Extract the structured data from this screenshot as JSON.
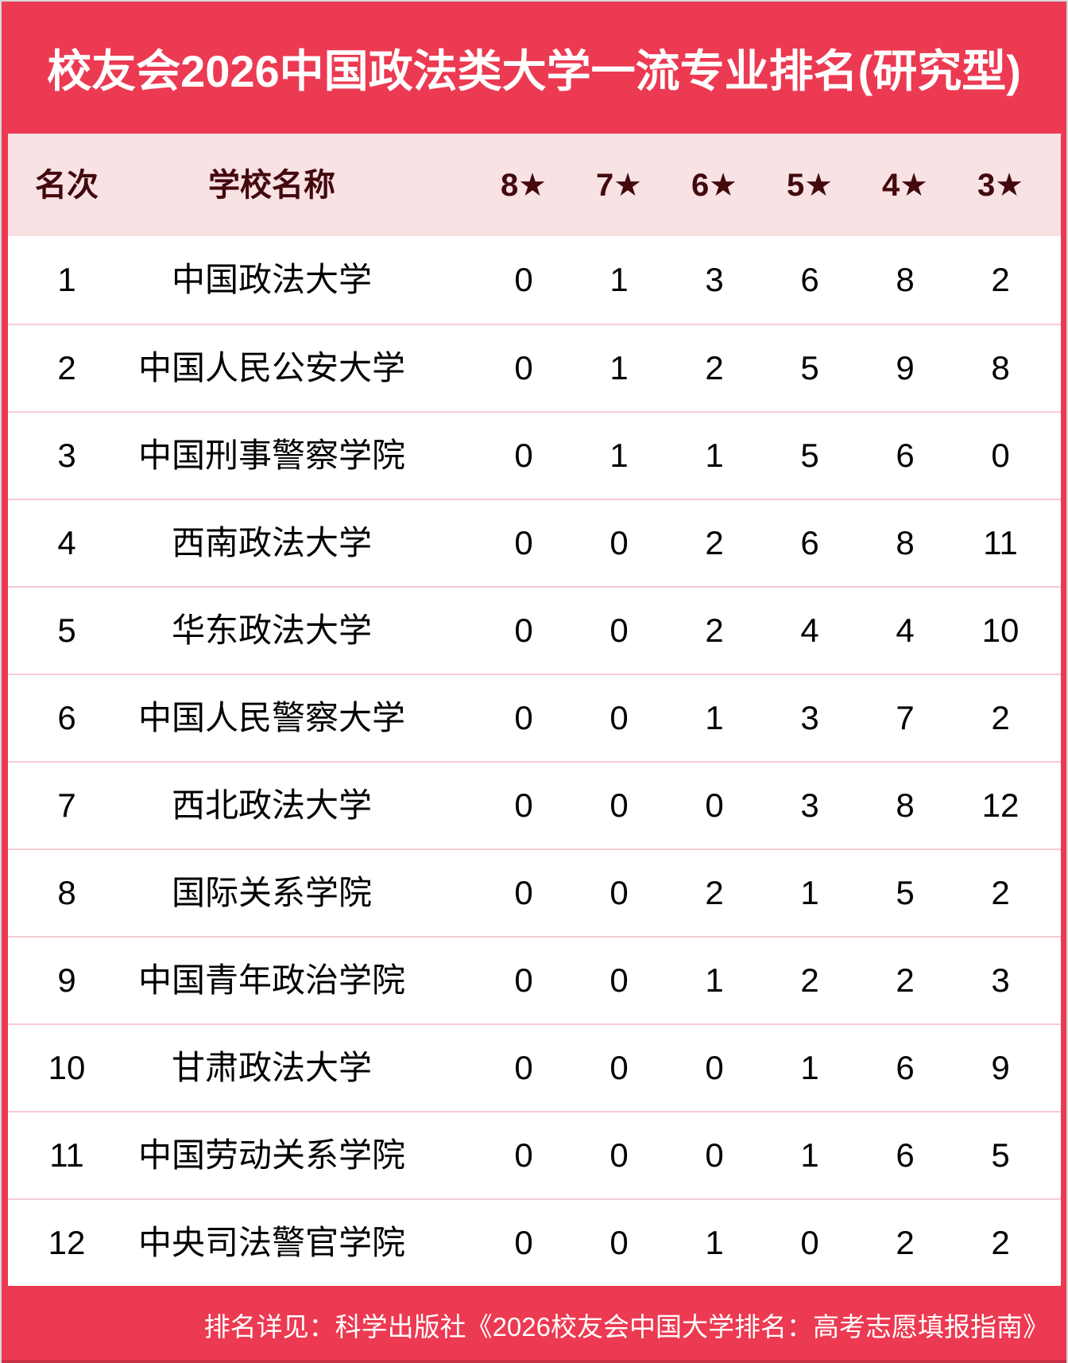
{
  "chart_data": {
    "type": "table",
    "title": "校友会2026中国政法类大学一流专业排名(研究型)",
    "columns": [
      "名次",
      "学校名称",
      "8★",
      "7★",
      "6★",
      "5★",
      "4★",
      "3★"
    ],
    "rows": [
      [
        "1",
        "中国政法大学",
        "0",
        "1",
        "3",
        "6",
        "8",
        "2"
      ],
      [
        "2",
        "中国人民公安大学",
        "0",
        "1",
        "2",
        "5",
        "9",
        "8"
      ],
      [
        "3",
        "中国刑事警察学院",
        "0",
        "1",
        "1",
        "5",
        "6",
        "0"
      ],
      [
        "4",
        "西南政法大学",
        "0",
        "0",
        "2",
        "6",
        "8",
        "11"
      ],
      [
        "5",
        "华东政法大学",
        "0",
        "0",
        "2",
        "4",
        "4",
        "10"
      ],
      [
        "6",
        "中国人民警察大学",
        "0",
        "0",
        "1",
        "3",
        "7",
        "2"
      ],
      [
        "7",
        "西北政法大学",
        "0",
        "0",
        "0",
        "3",
        "8",
        "12"
      ],
      [
        "8",
        "国际关系学院",
        "0",
        "0",
        "2",
        "1",
        "5",
        "2"
      ],
      [
        "9",
        "中国青年政治学院",
        "0",
        "0",
        "1",
        "2",
        "2",
        "3"
      ],
      [
        "10",
        "甘肃政法大学",
        "0",
        "0",
        "0",
        "1",
        "6",
        "9"
      ],
      [
        "11",
        "中国劳动关系学院",
        "0",
        "0",
        "0",
        "1",
        "6",
        "5"
      ],
      [
        "12",
        "中央司法警官学院",
        "0",
        "0",
        "1",
        "0",
        "2",
        "2"
      ]
    ],
    "footer": "排名详见：科学出版社《2026校友会中国大学排名：高考志愿填报指南》"
  },
  "colors": {
    "background_red": "#ec3a52",
    "header_pink": "#f8e2e3",
    "header_text_maroon": "#43090c",
    "row_separator_pink": "#f8ccd2",
    "row_text": "#000000",
    "title_text": "#ffffff",
    "frame_gray": "#d8d8da"
  }
}
